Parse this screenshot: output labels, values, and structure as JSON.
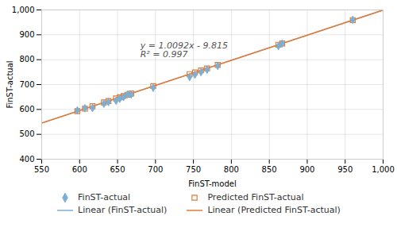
{
  "chart_data": {
    "type": "scatter",
    "xlabel": "FinST-model",
    "ylabel": "FinST-actual",
    "xlim": [
      550,
      1000
    ],
    "ylim": [
      400,
      1000
    ],
    "xticks": [
      550,
      600,
      650,
      700,
      750,
      800,
      850,
      900,
      950,
      1000
    ],
    "yticks": [
      400,
      500,
      600,
      700,
      800,
      900,
      1000
    ],
    "grid": true,
    "legend": "bottom",
    "annotation": {
      "x": 680,
      "y": 870,
      "lines": [
        "y = 1.0092x - 9.815",
        "R² = 0.997"
      ]
    },
    "series": [
      {
        "name": "FinST-actual",
        "type": "scatter",
        "marker": "diamond",
        "color": "#7bafd4",
        "x": [
          597,
          607,
          617,
          632,
          638,
          648,
          653,
          658,
          663,
          668,
          697,
          745,
          752,
          760,
          768,
          782,
          862,
          867,
          960
        ],
        "values": [
          596,
          605,
          606,
          623,
          630,
          635,
          643,
          650,
          660,
          660,
          687,
          730,
          740,
          750,
          760,
          775,
          855,
          865,
          960
        ]
      },
      {
        "name": "Predicted FinST-actual",
        "type": "scatter",
        "marker": "open square",
        "color": "#e07b39",
        "x": [
          597,
          607,
          617,
          632,
          638,
          648,
          653,
          658,
          663,
          668,
          697,
          745,
          752,
          760,
          768,
          782,
          862,
          867,
          960
        ],
        "values": [
          593,
          603,
          613,
          628,
          634,
          644,
          649,
          654,
          659,
          664,
          694,
          742,
          749,
          757,
          765,
          779,
          860,
          865,
          959
        ]
      },
      {
        "name": "Linear (FinST-actual)",
        "type": "line",
        "line_style": "solid",
        "color": "#7bafd4",
        "x": [
          550,
          1000
        ],
        "values": [
          545.245,
          999.385
        ]
      },
      {
        "name": "Linear (Predicted FinST-actual)",
        "type": "line",
        "line_style": "solid",
        "color": "#e07b39",
        "x": [
          550,
          1000
        ],
        "values": [
          545.245,
          999.385
        ]
      }
    ]
  }
}
